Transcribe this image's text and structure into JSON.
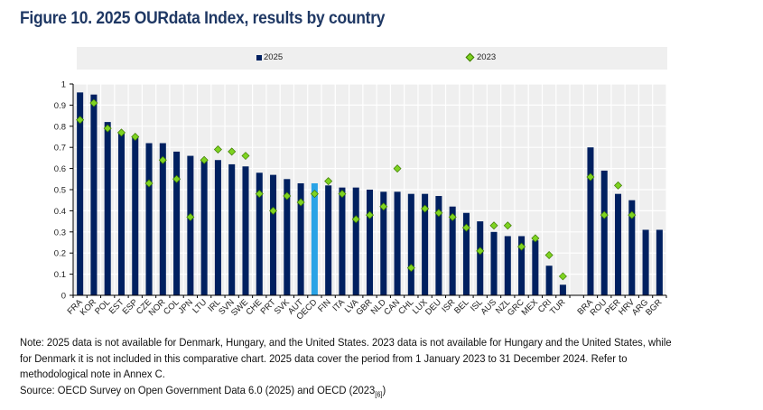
{
  "title": "Figure 10. 2025 OURdata Index, results by country",
  "legend": [
    {
      "label": "2025",
      "marker": "square-bar",
      "color": "#002060"
    },
    {
      "label": "2023",
      "marker": "diamond",
      "color": "#7ed321"
    }
  ],
  "colors": {
    "bar": "#002060",
    "highlight_bar": "#29a3e6",
    "marker": "#7ed321",
    "marker_edge": "#3d7a00",
    "plot_bg": "#efefef",
    "grid": "#ffffff"
  },
  "chart_data": {
    "type": "bar",
    "title": "Figure 10. 2025 OURdata Index, results by country",
    "xlabel": "",
    "ylabel": "",
    "ylim": [
      0,
      1
    ],
    "yticks": [
      0,
      0.1,
      0.2,
      0.3,
      0.4,
      0.5,
      0.6,
      0.7,
      0.8,
      0.9,
      1
    ],
    "ytick_labels": [
      "0",
      "0.1",
      "0.2",
      "0.3",
      "0.4",
      "0.5",
      "0.6",
      "0.7",
      "0.8",
      "0.9",
      "1"
    ],
    "grid": true,
    "legend_position": "top",
    "highlight_category": "OECD",
    "categories": [
      "FRA",
      "KOR",
      "POL",
      "EST",
      "ESP",
      "CZE",
      "NOR",
      "COL",
      "JPN",
      "LTU",
      "IRL",
      "SVN",
      "SWE",
      "CHE",
      "PRT",
      "SVK",
      "AUT",
      "OECD",
      "FIN",
      "ITA",
      "LVA",
      "GBR",
      "NLD",
      "CAN",
      "CHL",
      "LUX",
      "DEU",
      "ISR",
      "BEL",
      "ISL",
      "AUS",
      "NZL",
      "GRC",
      "MEX",
      "CRI",
      "TUR",
      "",
      "BRA",
      "ROU",
      "PER",
      "HRV",
      "ARG",
      "BGR"
    ],
    "series": [
      {
        "name": "2025",
        "type": "bar",
        "values": [
          0.96,
          0.95,
          0.82,
          0.77,
          0.75,
          0.72,
          0.72,
          0.68,
          0.66,
          0.64,
          0.64,
          0.62,
          0.61,
          0.58,
          0.57,
          0.55,
          0.53,
          0.53,
          0.52,
          0.51,
          0.51,
          0.5,
          0.49,
          0.49,
          0.48,
          0.48,
          0.47,
          0.42,
          0.39,
          0.35,
          0.3,
          0.28,
          0.28,
          0.26,
          0.14,
          0.05,
          null,
          0.7,
          0.59,
          0.48,
          0.45,
          0.31,
          0.31
        ]
      },
      {
        "name": "2023",
        "type": "marker",
        "values": [
          0.83,
          0.91,
          0.79,
          0.77,
          0.75,
          0.53,
          0.64,
          0.55,
          0.37,
          0.64,
          0.69,
          0.68,
          0.66,
          0.48,
          0.4,
          0.47,
          0.44,
          0.48,
          0.54,
          0.48,
          0.36,
          0.38,
          0.42,
          0.6,
          0.13,
          0.41,
          0.39,
          0.37,
          0.32,
          0.21,
          0.33,
          0.33,
          0.23,
          0.27,
          0.19,
          0.09,
          null,
          0.56,
          0.38,
          0.52,
          0.38,
          null,
          null
        ]
      }
    ]
  },
  "notes": {
    "note": "Note: 2025 data is not available for Denmark, Hungary, and the United States. 2023 data is not available for Hungary and the United States, while for Denmark it is not included in this comparative chart. 2025 data cover the period from 1 January 2023 to 31 December 2024. Refer to methodological note in Annex C.",
    "source": "Source: OECD Survey on Open Government Data 6.0 (2025) and OECD (2023",
    "source_ref": "[6]",
    "source_end": ")"
  }
}
